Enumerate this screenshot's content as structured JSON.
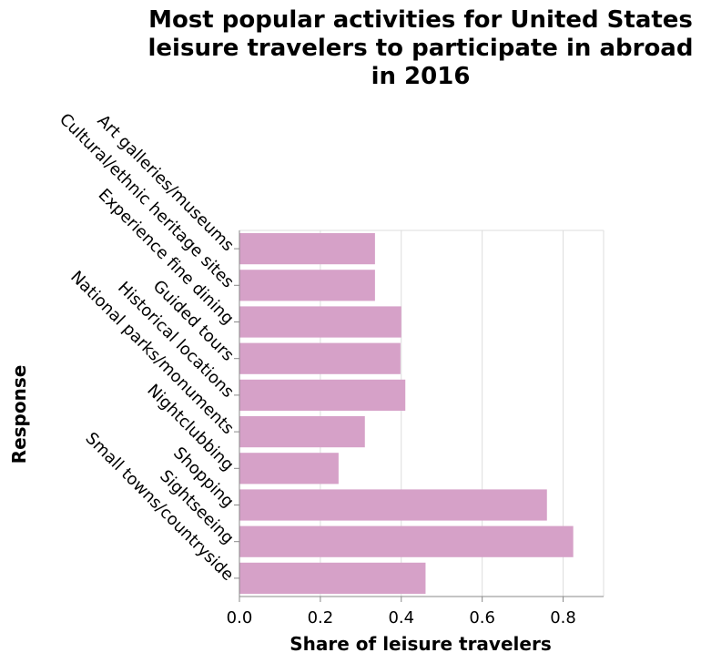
{
  "chart_data": {
    "type": "bar",
    "orientation": "horizontal",
    "title": "Most popular activities for United States leisure travelers to participate in abroad in 2016",
    "title_lines": [
      "Most popular activities for United States",
      "leisure travelers to participate in abroad",
      "in 2016"
    ],
    "xlabel": "Share of leisure travelers",
    "ylabel": "Response",
    "xlim": [
      0,
      0.9
    ],
    "x_ticks": [
      0.0,
      0.2,
      0.4,
      0.6,
      0.8
    ],
    "x_tick_labels": [
      "0.0",
      "0.2",
      "0.4",
      "0.6",
      "0.8"
    ],
    "grid": true,
    "bar_color": "#d6a1c8",
    "categories": [
      "Art galleries/museums",
      "Cultural/ethnic heritage sites",
      "Experience fine dining",
      "Guided tours",
      "Historical locations",
      "National parks/monuments",
      "Nightclubbing",
      "Shopping",
      "Sightseeing",
      "Small towns/countryside"
    ],
    "values": [
      0.335,
      0.335,
      0.4,
      0.398,
      0.41,
      0.31,
      0.245,
      0.76,
      0.825,
      0.46
    ]
  }
}
